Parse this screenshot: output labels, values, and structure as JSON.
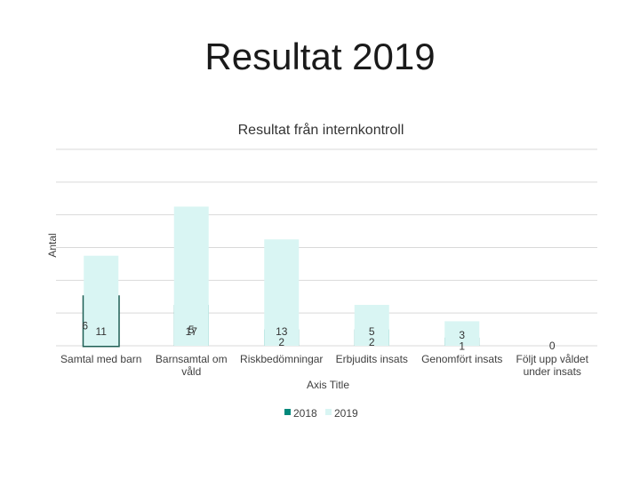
{
  "slide": {
    "title": "Resultat 2019"
  },
  "chart_data": {
    "type": "bar",
    "stacked": true,
    "title": "Resultat från internkontroll",
    "ylabel": "Antal",
    "xlabel": "Axis Title",
    "categories": [
      "Samtal med barn",
      "Barnsamtal om våld",
      "Riskbedömningar",
      "Erbjudits insats",
      "Genomfört insats",
      "Följt upp våldet under insats"
    ],
    "series": [
      {
        "name": "2018",
        "values": [
          6,
          5,
          2,
          2,
          1,
          0
        ],
        "color": "#00897b"
      },
      {
        "name": "2019",
        "values": [
          11,
          17,
          13,
          5,
          3,
          0
        ],
        "color": "#d9f5f3"
      }
    ],
    "ylim": [
      0,
      24
    ],
    "grid": true,
    "legend": "bottom"
  }
}
